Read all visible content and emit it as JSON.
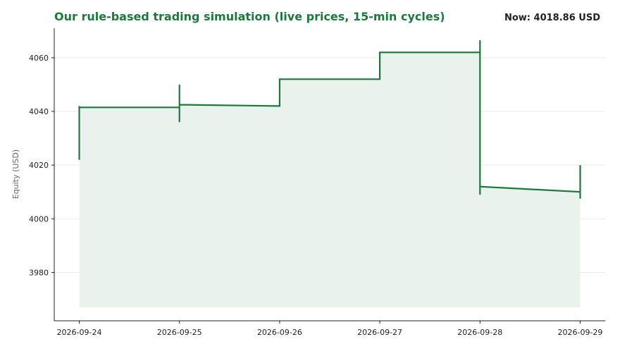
{
  "header": {
    "title": "Our rule-based trading simulation (live prices, 15-min cycles)",
    "now_label": "Now:",
    "now_value": "4018.86 USD"
  },
  "colors": {
    "title": "#1a7a3a",
    "line": "#1a7a3a",
    "fill": "#e9f2ec",
    "grid": "#ebebeb",
    "axis": "#222222"
  },
  "chart_data": {
    "type": "line",
    "ylabel": "Equity (USD)",
    "xlabel": "",
    "ylim": [
      3962,
      4071
    ],
    "xlim": [
      "2026-09-23T18:00",
      "2026-09-29T06:00"
    ],
    "grid": true,
    "legend": "none",
    "x_ticks": [
      "2026-09-24",
      "2026-09-25",
      "2026-09-26",
      "2026-09-27",
      "2026-09-28",
      "2026-09-29"
    ],
    "y_ticks": [
      3980,
      4000,
      4020,
      4040,
      4060
    ],
    "series": [
      {
        "points": [
          [
            "2026-09-24T00:00",
            4022
          ],
          [
            "2026-09-24T00:00",
            4042
          ],
          [
            "2026-09-24T00:00",
            4041.5
          ],
          [
            "2026-09-25T00:00",
            4041.5
          ],
          [
            "2026-09-25T00:00",
            4036
          ],
          [
            "2026-09-25T00:00",
            4050
          ],
          [
            "2026-09-25T00:00",
            4042.5
          ],
          [
            "2026-09-26T00:00",
            4042
          ],
          [
            "2026-09-26T00:00",
            4052
          ],
          [
            "2026-09-27T00:00",
            4052
          ],
          [
            "2026-09-27T00:00",
            4062
          ],
          [
            "2026-09-28T00:00",
            4062
          ],
          [
            "2026-09-28T00:00",
            4066.5
          ],
          [
            "2026-09-28T00:00",
            4009
          ],
          [
            "2026-09-28T00:00",
            4012
          ],
          [
            "2026-09-29T00:00",
            4010
          ],
          [
            "2026-09-29T00:00",
            4007.5
          ],
          [
            "2026-09-29T00:00",
            4020
          ]
        ],
        "fill_baseline": 3967
      }
    ]
  }
}
